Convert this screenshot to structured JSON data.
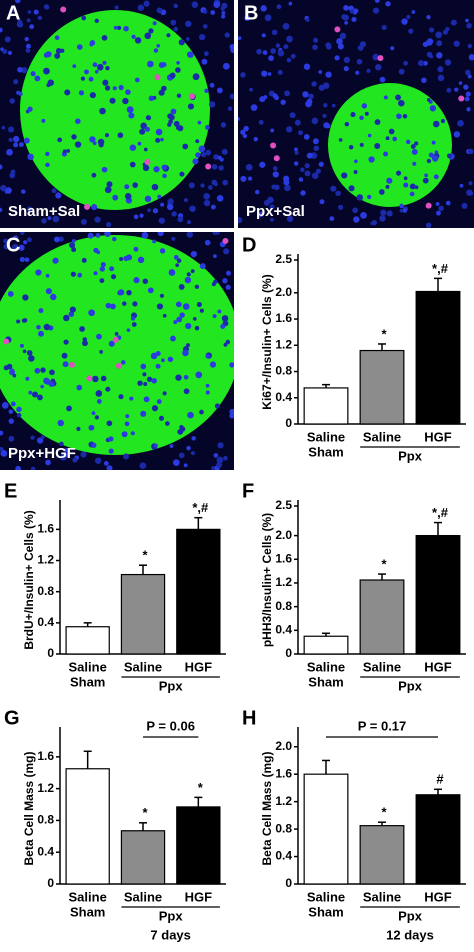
{
  "micrographs": [
    {
      "label": "A",
      "caption": "Sham+Sal"
    },
    {
      "label": "B",
      "caption": "Ppx+Sal"
    },
    {
      "label": "C",
      "caption": "Ppx+HGF"
    }
  ],
  "chart_data": [
    {
      "type": "bar",
      "panel": "D",
      "ylabel": "Ki67+/Insulin+ Cells (%)",
      "categories": [
        "Saline",
        "Saline",
        "HGF"
      ],
      "group_labels": [
        "Sham",
        "Ppx"
      ],
      "values": [
        0.55,
        1.12,
        2.02
      ],
      "errors": [
        0.05,
        0.1,
        0.2
      ],
      "colors": [
        "#ffffff",
        "#8c8c8c",
        "#000000"
      ],
      "annotations": [
        null,
        "*",
        "*,#"
      ],
      "ylim": [
        0,
        2.5
      ],
      "yticks": [
        0,
        0.4,
        0.8,
        1.2,
        1.6,
        {
          "value": 2,
          "label": "2.0"
        },
        2.5
      ]
    },
    {
      "type": "bar",
      "panel": "E",
      "ylabel": "BrdU+/Insulin+ Cells (%)",
      "categories": [
        "Saline",
        "Saline",
        "HGF"
      ],
      "group_labels": [
        "Sham",
        "Ppx"
      ],
      "values": [
        0.35,
        1.02,
        1.6
      ],
      "errors": [
        0.05,
        0.12,
        0.15
      ],
      "colors": [
        "#ffffff",
        "#8c8c8c",
        "#000000"
      ],
      "annotations": [
        null,
        "*",
        "*,#"
      ],
      "ylim": [
        0,
        1.9
      ],
      "yticks": [
        0,
        0.4,
        0.8,
        1.2,
        1.6
      ]
    },
    {
      "type": "bar",
      "panel": "F",
      "ylabel": "pHH3/Insulin+ Cells (%)",
      "categories": [
        "Saline",
        "Saline",
        "HGF"
      ],
      "group_labels": [
        "Sham",
        "Ppx"
      ],
      "values": [
        0.3,
        1.25,
        2.0
      ],
      "errors": [
        0.05,
        0.1,
        0.22
      ],
      "colors": [
        "#ffffff",
        "#8c8c8c",
        "#000000"
      ],
      "annotations": [
        null,
        "*",
        "*,#"
      ],
      "ylim": [
        0,
        2.5
      ],
      "yticks": [
        0,
        0.4,
        0.8,
        1.2,
        1.6,
        {
          "value": 2,
          "label": "2.0"
        },
        2.5
      ]
    },
    {
      "type": "bar",
      "panel": "G",
      "ylabel": "Beta Cell Mass (mg)",
      "categories": [
        "Saline",
        "Saline",
        "HGF"
      ],
      "group_labels": [
        "Sham",
        "Ppx"
      ],
      "values": [
        1.45,
        0.67,
        0.97
      ],
      "errors": [
        0.22,
        0.1,
        0.12
      ],
      "colors": [
        "#ffffff",
        "#8c8c8c",
        "#000000"
      ],
      "annotations": [
        null,
        "*",
        "*"
      ],
      "bracket_label": "P = 0.06",
      "subtitle": "7 days",
      "ylim": [
        0,
        1.9
      ],
      "yticks": [
        0,
        0.4,
        0.8,
        1.2,
        1.6
      ]
    },
    {
      "type": "bar",
      "panel": "H",
      "ylabel": "Beta Cell Mass (mg)",
      "categories": [
        "Saline",
        "Saline",
        "HGF"
      ],
      "group_labels": [
        "Sham",
        "Ppx"
      ],
      "values": [
        1.6,
        0.85,
        1.3
      ],
      "errors": [
        0.2,
        0.05,
        0.08
      ],
      "colors": [
        "#ffffff",
        "#8c8c8c",
        "#000000"
      ],
      "annotations": [
        null,
        "*",
        "#"
      ],
      "bracket_label": "P = 0.17",
      "subtitle": "12 days",
      "ylim": [
        0,
        2.2
      ],
      "yticks": [
        0,
        0.4,
        0.8,
        1.2,
        1.6,
        {
          "value": 2,
          "label": "2.0"
        }
      ]
    }
  ]
}
